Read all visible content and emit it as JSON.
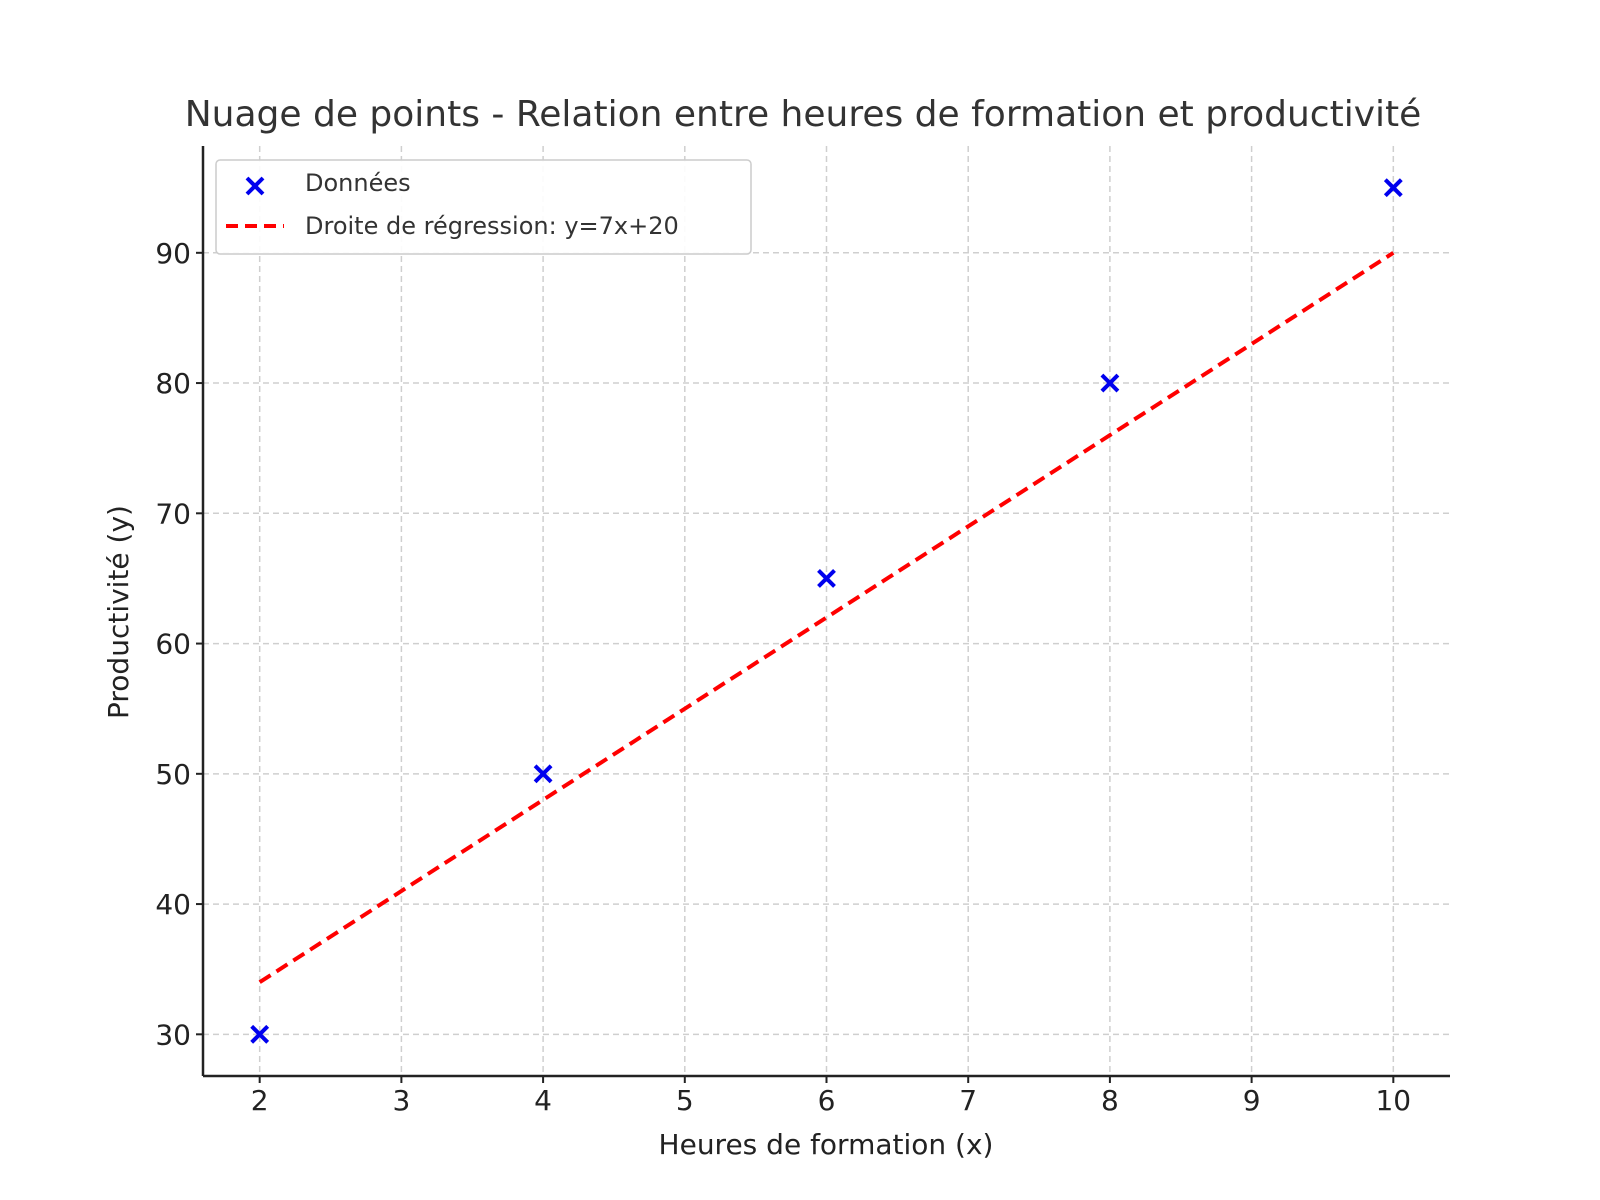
{
  "chart_data": {
    "type": "scatter",
    "title": "Nuage de points - Relation entre heures de formation et productivité",
    "xlabel": "Heures de formation (x)",
    "ylabel": "Productivité (y)",
    "xlim": [
      1.6,
      10.4
    ],
    "ylim": [
      26.8,
      98.2
    ],
    "xticks": [
      2,
      3,
      4,
      5,
      6,
      7,
      8,
      9,
      10
    ],
    "yticks": [
      30,
      40,
      50,
      60,
      70,
      80,
      90
    ],
    "grid": true,
    "legend_position": "top-left",
    "series": [
      {
        "name": "Données",
        "kind": "scatter",
        "marker": "x",
        "color": "#0000ee",
        "x": [
          2,
          4,
          6,
          8,
          10
        ],
        "y": [
          30,
          50,
          65,
          80,
          95
        ]
      },
      {
        "name": "Droite de régression: y=7x+20",
        "kind": "line",
        "style": "dashed",
        "color": "#ff0000",
        "x": [
          2,
          10
        ],
        "y": [
          34,
          90
        ]
      }
    ]
  }
}
